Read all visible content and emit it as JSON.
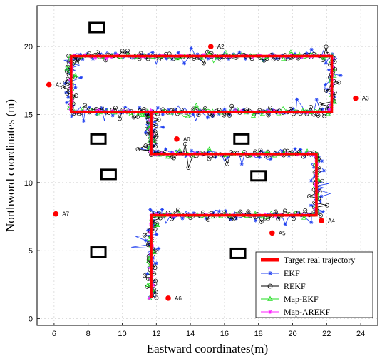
{
  "chart_data": {
    "type": "line",
    "xlabel": "Eastward coordinates(m)",
    "ylabel": "Northword coordinates (m)",
    "xlim": [
      5,
      25
    ],
    "ylim": [
      -0.5,
      23
    ],
    "xticks": [
      "6",
      "8",
      "10",
      "12",
      "14",
      "16",
      "18",
      "20",
      "22",
      "24"
    ],
    "yticks": [
      "0",
      "5",
      "10",
      "15",
      "20"
    ],
    "grid": true,
    "legend_position": "bottom-right",
    "anchors": [
      {
        "name": "A0",
        "x": 13.2,
        "y": 13.2
      },
      {
        "name": "A1",
        "x": 5.7,
        "y": 17.2
      },
      {
        "name": "A2",
        "x": 15.2,
        "y": 20.0
      },
      {
        "name": "A3",
        "x": 23.7,
        "y": 16.2
      },
      {
        "name": "A4",
        "x": 21.7,
        "y": 7.2
      },
      {
        "name": "A5",
        "x": 18.8,
        "y": 6.3
      },
      {
        "name": "A6",
        "x": 12.7,
        "y": 1.5
      },
      {
        "name": "A7",
        "x": 6.1,
        "y": 7.7
      }
    ],
    "obstacles": [
      {
        "x": 8.5,
        "y": 21.4
      },
      {
        "x": 8.6,
        "y": 13.2
      },
      {
        "x": 9.2,
        "y": 10.6
      },
      {
        "x": 18.0,
        "y": 10.5
      },
      {
        "x": 17.0,
        "y": 13.2
      },
      {
        "x": 8.6,
        "y": 4.9
      },
      {
        "x": 16.8,
        "y": 4.8
      }
    ],
    "target": {
      "name": "Target real trajectory",
      "x": [
        11.7,
        11.7,
        21.4,
        21.4,
        11.7,
        11.7,
        22.3,
        22.3,
        7.0,
        7.0,
        11.7,
        11.7
      ],
      "y": [
        1.5,
        7.6,
        7.6,
        12.1,
        12.1,
        15.2,
        15.2,
        19.3,
        19.3,
        15.2,
        15.2,
        12.1
      ]
    },
    "series": [
      {
        "name": "EKF",
        "color": "#1f3ff0",
        "marker": "star"
      },
      {
        "name": "REKF",
        "color": "#000000",
        "marker": "circle"
      },
      {
        "name": "Map-EKF",
        "color": "#22dd22",
        "marker": "triangle"
      },
      {
        "name": "Map-AREKF",
        "color": "#ff22ff",
        "marker": "star"
      }
    ],
    "target_color": "#ff0000",
    "anchor_color": "#ff0000"
  }
}
